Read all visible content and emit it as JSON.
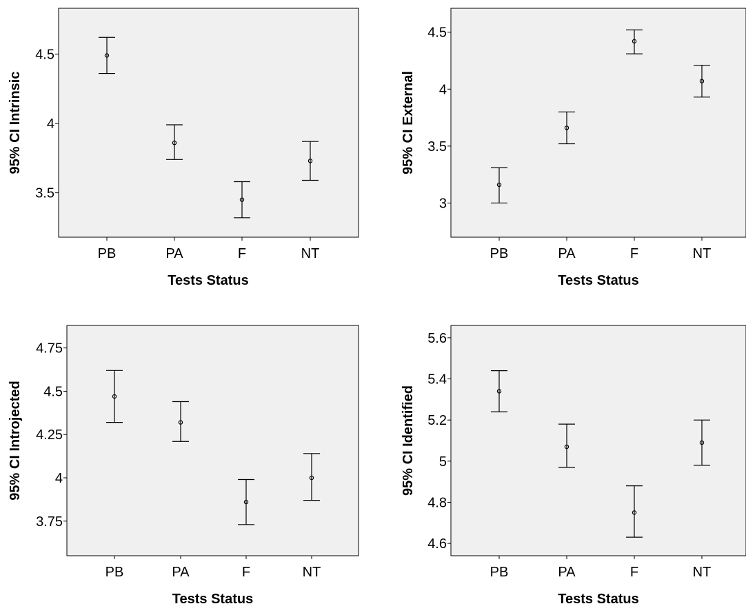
{
  "chart_data": [
    {
      "type": "errorbar",
      "xlabel": "Tests Status",
      "ylabel": "95% CI Intrinsic",
      "categories": [
        "PB",
        "PA",
        "F",
        "NT"
      ],
      "mean": [
        4.49,
        3.86,
        3.45,
        3.73
      ],
      "lower": [
        4.36,
        3.74,
        3.32,
        3.59
      ],
      "upper": [
        4.62,
        3.99,
        3.58,
        3.87
      ],
      "yticks": [
        3.5,
        4,
        4.5
      ],
      "ytick_labels": [
        "3.5",
        "4",
        "4.5"
      ],
      "ylim": [
        3.18,
        4.83
      ]
    },
    {
      "type": "errorbar",
      "xlabel": "Tests Status",
      "ylabel": "95% CI External",
      "categories": [
        "PB",
        "PA",
        "F",
        "NT"
      ],
      "mean": [
        3.16,
        3.66,
        4.42,
        4.07
      ],
      "lower": [
        3.0,
        3.52,
        4.31,
        3.93
      ],
      "upper": [
        3.31,
        3.8,
        4.52,
        4.21
      ],
      "yticks": [
        3,
        3.5,
        4,
        4.5
      ],
      "ytick_labels": [
        "3",
        "3.5",
        "4",
        "4.5"
      ],
      "ylim": [
        2.7,
        4.71
      ]
    },
    {
      "type": "errorbar",
      "xlabel": "Tests Status",
      "ylabel": "95% CI Introjected",
      "categories": [
        "PB",
        "PA",
        "F",
        "NT"
      ],
      "mean": [
        4.47,
        4.32,
        3.86,
        4.0
      ],
      "lower": [
        4.32,
        4.21,
        3.73,
        3.87
      ],
      "upper": [
        4.62,
        4.44,
        3.99,
        4.14
      ],
      "yticks": [
        3.75,
        4,
        4.25,
        4.5,
        4.75
      ],
      "ytick_labels": [
        "3.75",
        "4",
        "4.25",
        "4.5",
        "4.75"
      ],
      "ylim": [
        3.55,
        4.88
      ]
    },
    {
      "type": "errorbar",
      "xlabel": "Tests Status",
      "ylabel": "95% CI Identified",
      "categories": [
        "PB",
        "PA",
        "F",
        "NT"
      ],
      "mean": [
        5.34,
        5.07,
        4.75,
        5.09
      ],
      "lower": [
        5.24,
        4.97,
        4.63,
        4.98
      ],
      "upper": [
        5.44,
        5.18,
        4.88,
        5.2
      ],
      "yticks": [
        4.6,
        4.8,
        5,
        5.2,
        5.4,
        5.6
      ],
      "ytick_labels": [
        "4.6",
        "4.8",
        "5",
        "5.2",
        "5.4",
        "5.6"
      ],
      "ylim": [
        4.54,
        5.66
      ]
    }
  ]
}
